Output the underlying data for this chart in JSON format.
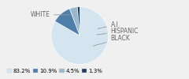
{
  "labels": [
    "WHITE",
    "BLACK",
    "HISPANIC",
    "A.I."
  ],
  "values": [
    83.2,
    10.9,
    4.5,
    1.3
  ],
  "colors": [
    "#d4e5f0",
    "#4e7eaa",
    "#9ab8cc",
    "#1e3d5e"
  ],
  "legend_labels": [
    "83.2%",
    "10.9%",
    "4.5%",
    "1.3%"
  ],
  "legend_colors": [
    "#d4e5f0",
    "#4e7eaa",
    "#9ab8cc",
    "#1e3d5e"
  ],
  "startangle": 90,
  "bg_color": "#f0f0f0",
  "text_color": "#666666",
  "line_color": "#999999"
}
